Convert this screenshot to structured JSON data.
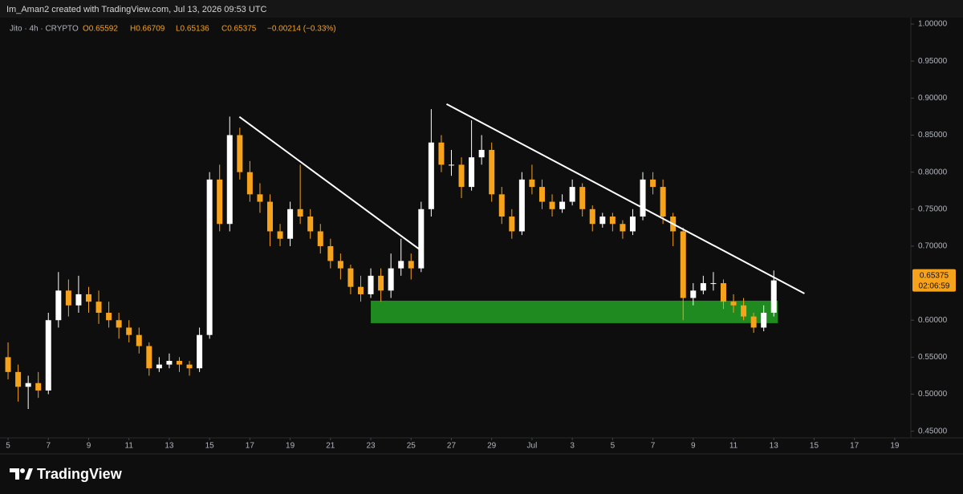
{
  "chart_data": {
    "type": "candlestick",
    "attribution": "Im_Aman2 created with TradingView.com, Jul 13, 2026 09:53 UTC",
    "legend": {
      "symbol": "Jito · 4h · CRYPTO",
      "open": "O0.65592",
      "high": "H0.66709",
      "low": "L0.65136",
      "close": "C0.65375",
      "change": "−0.00214 (−0.33%)"
    },
    "brand": "TradingView",
    "up_color": "#ffffff",
    "down_color": "#f7a21b",
    "x": [
      0,
      0.5,
      1,
      1.5,
      2,
      2.5,
      3,
      3.5,
      4,
      4.5,
      5,
      5.5,
      6,
      6.5,
      7,
      7.5,
      8,
      8.5,
      9,
      9.5,
      10,
      10.5,
      11,
      11.5,
      12,
      12.5,
      13,
      13.5,
      14,
      14.5,
      15,
      15.5,
      16,
      16.5,
      17,
      17.5,
      18,
      18.5,
      19,
      19.5,
      20,
      20.5,
      21,
      21.5,
      22,
      22.5,
      23,
      23.5,
      24,
      24.5,
      25,
      25.5,
      26,
      26.5,
      27,
      27.5,
      28,
      28.5,
      29,
      29.5,
      30,
      30.5,
      31,
      31.5,
      32,
      32.5,
      33,
      33.5,
      34,
      34.5,
      35,
      35.5,
      36,
      36.5,
      37,
      37.5,
      38
    ],
    "candles": [
      [
        0.55,
        0.57,
        0.52,
        0.53
      ],
      [
        0.53,
        0.54,
        0.49,
        0.51
      ],
      [
        0.51,
        0.525,
        0.48,
        0.515
      ],
      [
        0.515,
        0.53,
        0.495,
        0.505
      ],
      [
        0.505,
        0.61,
        0.5,
        0.6
      ],
      [
        0.6,
        0.665,
        0.59,
        0.64
      ],
      [
        0.64,
        0.655,
        0.605,
        0.62
      ],
      [
        0.62,
        0.66,
        0.61,
        0.635
      ],
      [
        0.635,
        0.645,
        0.61,
        0.625
      ],
      [
        0.625,
        0.64,
        0.595,
        0.61
      ],
      [
        0.61,
        0.625,
        0.59,
        0.6
      ],
      [
        0.6,
        0.61,
        0.575,
        0.59
      ],
      [
        0.59,
        0.6,
        0.57,
        0.58
      ],
      [
        0.58,
        0.59,
        0.555,
        0.565
      ],
      [
        0.565,
        0.57,
        0.525,
        0.535
      ],
      [
        0.535,
        0.55,
        0.53,
        0.54
      ],
      [
        0.54,
        0.555,
        0.535,
        0.545
      ],
      [
        0.545,
        0.55,
        0.53,
        0.54
      ],
      [
        0.54,
        0.545,
        0.525,
        0.535
      ],
      [
        0.535,
        0.59,
        0.53,
        0.58
      ],
      [
        0.58,
        0.8,
        0.575,
        0.79
      ],
      [
        0.79,
        0.81,
        0.72,
        0.73
      ],
      [
        0.73,
        0.875,
        0.72,
        0.85
      ],
      [
        0.85,
        0.86,
        0.79,
        0.8
      ],
      [
        0.8,
        0.815,
        0.76,
        0.77
      ],
      [
        0.77,
        0.785,
        0.745,
        0.76
      ],
      [
        0.76,
        0.77,
        0.7,
        0.72
      ],
      [
        0.72,
        0.73,
        0.7,
        0.71
      ],
      [
        0.71,
        0.76,
        0.7,
        0.75
      ],
      [
        0.75,
        0.81,
        0.73,
        0.74
      ],
      [
        0.74,
        0.75,
        0.71,
        0.72
      ],
      [
        0.72,
        0.73,
        0.69,
        0.7
      ],
      [
        0.7,
        0.71,
        0.67,
        0.68
      ],
      [
        0.68,
        0.69,
        0.655,
        0.67
      ],
      [
        0.67,
        0.675,
        0.635,
        0.645
      ],
      [
        0.645,
        0.66,
        0.625,
        0.635
      ],
      [
        0.635,
        0.67,
        0.63,
        0.66
      ],
      [
        0.66,
        0.67,
        0.625,
        0.64
      ],
      [
        0.64,
        0.69,
        0.63,
        0.67
      ],
      [
        0.67,
        0.71,
        0.66,
        0.68
      ],
      [
        0.68,
        0.69,
        0.655,
        0.67
      ],
      [
        0.67,
        0.76,
        0.665,
        0.75
      ],
      [
        0.75,
        0.885,
        0.74,
        0.84
      ],
      [
        0.84,
        0.85,
        0.8,
        0.81
      ],
      [
        0.81,
        0.83,
        0.795,
        0.81
      ],
      [
        0.81,
        0.82,
        0.765,
        0.78
      ],
      [
        0.78,
        0.87,
        0.775,
        0.82
      ],
      [
        0.82,
        0.85,
        0.81,
        0.83
      ],
      [
        0.83,
        0.84,
        0.76,
        0.77
      ],
      [
        0.77,
        0.78,
        0.73,
        0.74
      ],
      [
        0.74,
        0.75,
        0.71,
        0.72
      ],
      [
        0.72,
        0.8,
        0.715,
        0.79
      ],
      [
        0.79,
        0.81,
        0.77,
        0.78
      ],
      [
        0.78,
        0.79,
        0.75,
        0.76
      ],
      [
        0.76,
        0.77,
        0.74,
        0.75
      ],
      [
        0.75,
        0.77,
        0.745,
        0.76
      ],
      [
        0.76,
        0.79,
        0.755,
        0.78
      ],
      [
        0.78,
        0.785,
        0.74,
        0.75
      ],
      [
        0.75,
        0.755,
        0.72,
        0.73
      ],
      [
        0.73,
        0.745,
        0.725,
        0.74
      ],
      [
        0.74,
        0.745,
        0.72,
        0.73
      ],
      [
        0.73,
        0.735,
        0.71,
        0.72
      ],
      [
        0.72,
        0.75,
        0.715,
        0.74
      ],
      [
        0.74,
        0.8,
        0.735,
        0.79
      ],
      [
        0.79,
        0.8,
        0.77,
        0.78
      ],
      [
        0.78,
        0.79,
        0.73,
        0.74
      ],
      [
        0.74,
        0.745,
        0.7,
        0.72
      ],
      [
        0.72,
        0.725,
        0.6,
        0.63
      ],
      [
        0.63,
        0.65,
        0.62,
        0.64
      ],
      [
        0.64,
        0.66,
        0.635,
        0.65
      ],
      [
        0.65,
        0.665,
        0.64,
        0.65
      ],
      [
        0.65,
        0.655,
        0.615,
        0.625
      ],
      [
        0.625,
        0.635,
        0.61,
        0.62
      ],
      [
        0.62,
        0.63,
        0.6,
        0.605
      ],
      [
        0.605,
        0.61,
        0.583,
        0.59
      ],
      [
        0.59,
        0.62,
        0.585,
        0.61
      ],
      [
        0.61,
        0.66709,
        0.605,
        0.65375
      ]
    ],
    "price_tag": {
      "value": 0.65375,
      "label": "0.65375",
      "countdown": "02:06:59"
    },
    "trendlines": [
      {
        "x": [
          11.48,
          20.48
        ],
        "y": [
          0.8747,
          0.6944
        ],
        "color": "#ffffff"
      },
      {
        "x": [
          21.76,
          39.52
        ],
        "y": [
          0.892,
          0.636
        ],
        "color": "#ffffff"
      }
    ],
    "zone": {
      "x": [
        18,
        38.2
      ],
      "y": [
        0.596,
        0.6263
      ],
      "color": "#1f8a1f"
    },
    "xlim": [
      -0.4,
      44.8
    ],
    "ylim": [
      0.441,
      1.0087
    ],
    "xticks": [
      {
        "value": 0,
        "label": "5"
      },
      {
        "value": 2,
        "label": "7"
      },
      {
        "value": 4,
        "label": "9"
      },
      {
        "value": 6,
        "label": "11"
      },
      {
        "value": 8,
        "label": "13"
      },
      {
        "value": 10,
        "label": "15"
      },
      {
        "value": 12,
        "label": "17"
      },
      {
        "value": 14,
        "label": "19"
      },
      {
        "value": 16,
        "label": "21"
      },
      {
        "value": 18,
        "label": "23"
      },
      {
        "value": 20,
        "label": "25"
      },
      {
        "value": 22,
        "label": "27"
      },
      {
        "value": 24,
        "label": "29"
      },
      {
        "value": 26,
        "label": "Jul"
      },
      {
        "value": 28,
        "label": "3"
      },
      {
        "value": 30,
        "label": "5"
      },
      {
        "value": 32,
        "label": "7"
      },
      {
        "value": 34,
        "label": "9"
      },
      {
        "value": 36,
        "label": "11"
      },
      {
        "value": 38,
        "label": "13"
      },
      {
        "value": 40,
        "label": "15"
      },
      {
        "value": 42,
        "label": "17"
      },
      {
        "value": 44,
        "label": "19"
      }
    ],
    "yticks": [
      {
        "value": 0.45,
        "label": "0.45000"
      },
      {
        "value": 0.5,
        "label": "0.50000"
      },
      {
        "value": 0.55,
        "label": "0.55000"
      },
      {
        "value": 0.6,
        "label": "0.60000"
      },
      {
        "value": 0.7,
        "label": "0.70000"
      },
      {
        "value": 0.75,
        "label": "0.75000"
      },
      {
        "value": 0.8,
        "label": "0.80000"
      },
      {
        "value": 0.85,
        "label": "0.85000"
      },
      {
        "value": 0.9,
        "label": "0.90000"
      },
      {
        "value": 0.95,
        "label": "0.95000"
      },
      {
        "value": 1.0,
        "label": "1.00000"
      }
    ],
    "grid": false
  }
}
